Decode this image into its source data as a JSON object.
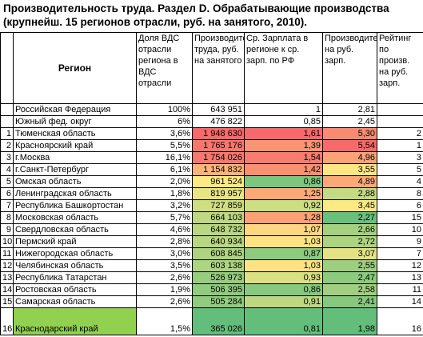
{
  "title": [
    "Производительность труда. Раздел D. Обрабатывающие производства",
    "(крупнейш. 15 регионов отрасли, руб. на занятого, 2010)."
  ],
  "table": {
    "header": [
      "Регион",
      "Доля ВДС отрасли региона в ВДС отрасли",
      "Производительность труда, руб. на занятого",
      "Ср. Зарплата в регионе к ср. зарп. по РФ",
      "Производительность на руб. зарп.",
      "Рейтинг по произв. на руб. зарп."
    ],
    "rows": [
      {
        "region": "Российская Федерация",
        "share": "100%",
        "productivity": "643 951",
        "wage_ratio": 1,
        "per_ruble": "2,81"
      },
      {
        "region": "Южный фед. округ",
        "share": "6%",
        "productivity": "476 822",
        "wage_ratio": "0,85",
        "per_ruble": "2,45"
      },
      {
        "num": 1,
        "region": "Тюменская область",
        "share": "3,6%",
        "productivity": "1 948 630",
        "wage_ratio": "1,61",
        "per_ruble": "5,30",
        "rating": 2,
        "colors": [
          "#f8696b",
          "#f8696b",
          "#fa8a71"
        ]
      },
      {
        "num": 2,
        "region": "Красноярский край",
        "share": "5,5%",
        "productivity": "1 765 176",
        "wage_ratio": "1,39",
        "per_ruble": "5,54",
        "rating": 1,
        "colors": [
          "#f8776d",
          "#fa9473",
          "#f8696b"
        ]
      },
      {
        "num": 3,
        "region": "г.Москва",
        "share": "16,1%",
        "productivity": "1 754 026",
        "wage_ratio": "1,54",
        "per_ruble": "4,96",
        "rating": 3,
        "colors": [
          "#f8786e",
          "#f97b6f",
          "#fba276"
        ]
      },
      {
        "num": 4,
        "region": "г.Санкт-Петербург",
        "share": "6,1%",
        "productivity": "1 154 832",
        "wage_ratio": "1,42",
        "per_ruble": "3,55",
        "rating": 5,
        "colors": [
          "#fcb479",
          "#fa8f72",
          "#fee783"
        ]
      },
      {
        "num": 5,
        "region": "Омская область",
        "share": "2,0%",
        "productivity": "961 524",
        "wage_ratio": "0,86",
        "per_ruble": "4,89",
        "rating": 4,
        "colors": [
          "#fee983",
          "#7cc67d",
          "#fca977"
        ]
      },
      {
        "num": 6,
        "region": "Ленинградская область",
        "share": "1,8%",
        "productivity": "819 957",
        "wage_ratio": "1,25",
        "per_ruble": "2,88",
        "rating": 8,
        "colors": [
          "#e9e583",
          "#fbaa77",
          "#c5db81"
        ]
      },
      {
        "num": 7,
        "region": "Республика Башкортостан",
        "share": "3,2%",
        "productivity": "727 859",
        "wage_ratio": "0,92",
        "per_ruble": "3,45",
        "rating": 6,
        "colors": [
          "#d0de82",
          "#cddd82",
          "#fbea84"
        ]
      },
      {
        "num": 8,
        "region": "Московская область",
        "share": "5,7%",
        "productivity": "664 103",
        "wage_ratio": "1,28",
        "per_ruble": "2,27",
        "rating": 15,
        "colors": [
          "#bed981",
          "#fba176",
          "#6ac07b"
        ]
      },
      {
        "num": 9,
        "region": "Свердловская область",
        "share": "4,6%",
        "productivity": "648 732",
        "wage_ratio": "1,07",
        "per_ruble": "2,66",
        "rating": 10,
        "colors": [
          "#bad781",
          "#fed680",
          "#a5d17f"
        ]
      },
      {
        "num": 10,
        "region": "Пермский край",
        "share": "2,8%",
        "productivity": "640 934",
        "wage_ratio": "1,03",
        "per_ruble": "2,72",
        "rating": 9,
        "colors": [
          "#b8d780",
          "#ffe383",
          "#acd37f"
        ]
      },
      {
        "num": 11,
        "region": "Нижегородская область",
        "share": "3,0%",
        "productivity": "608 845",
        "wage_ratio": "0,87",
        "per_ruble": "3,07",
        "rating": 7,
        "colors": [
          "#afd480",
          "#8cca7e",
          "#e4e383"
        ]
      },
      {
        "num": 12,
        "region": "Челябинская область",
        "share": "3,5%",
        "productivity": "603 138",
        "wage_ratio": "1,03",
        "per_ruble": "2,55",
        "rating": 12,
        "colors": [
          "#add47f",
          "#ffe383",
          "#9dcf7f"
        ]
      },
      {
        "num": 13,
        "region": "Республика Татарстан",
        "share": "2,6%",
        "productivity": "526 973",
        "wage_ratio": "0,93",
        "per_ruble": "2,47",
        "rating": 13,
        "colors": [
          "#97cd7e",
          "#dbe182",
          "#8ccb7e"
        ]
      },
      {
        "num": 14,
        "region": "Ростовская область",
        "share": "1,9%",
        "productivity": "506 395",
        "wage_ratio": "0,86",
        "per_ruble": "2,58",
        "rating": 11,
        "colors": [
          "#91cb7e",
          "#87c97e",
          "#a0d07f"
        ]
      },
      {
        "num": 15,
        "region": "Самарская область",
        "share": "2,6%",
        "productivity": "505 284",
        "wage_ratio": "0,91",
        "per_ruble": "2,41",
        "rating": 14,
        "colors": [
          "#91cb7e",
          "#bcd881",
          "#86c87d"
        ]
      },
      {
        "num": 16,
        "region": "Краснодарский край",
        "share": "1,5%",
        "productivity": "365 026",
        "wage_ratio": "0,81",
        "per_ruble": "1,98",
        "rating": 16,
        "colors": [
          "#63be7b",
          "#63be7b",
          "#63be7b"
        ],
        "region_color": "#92d050"
      }
    ]
  }
}
